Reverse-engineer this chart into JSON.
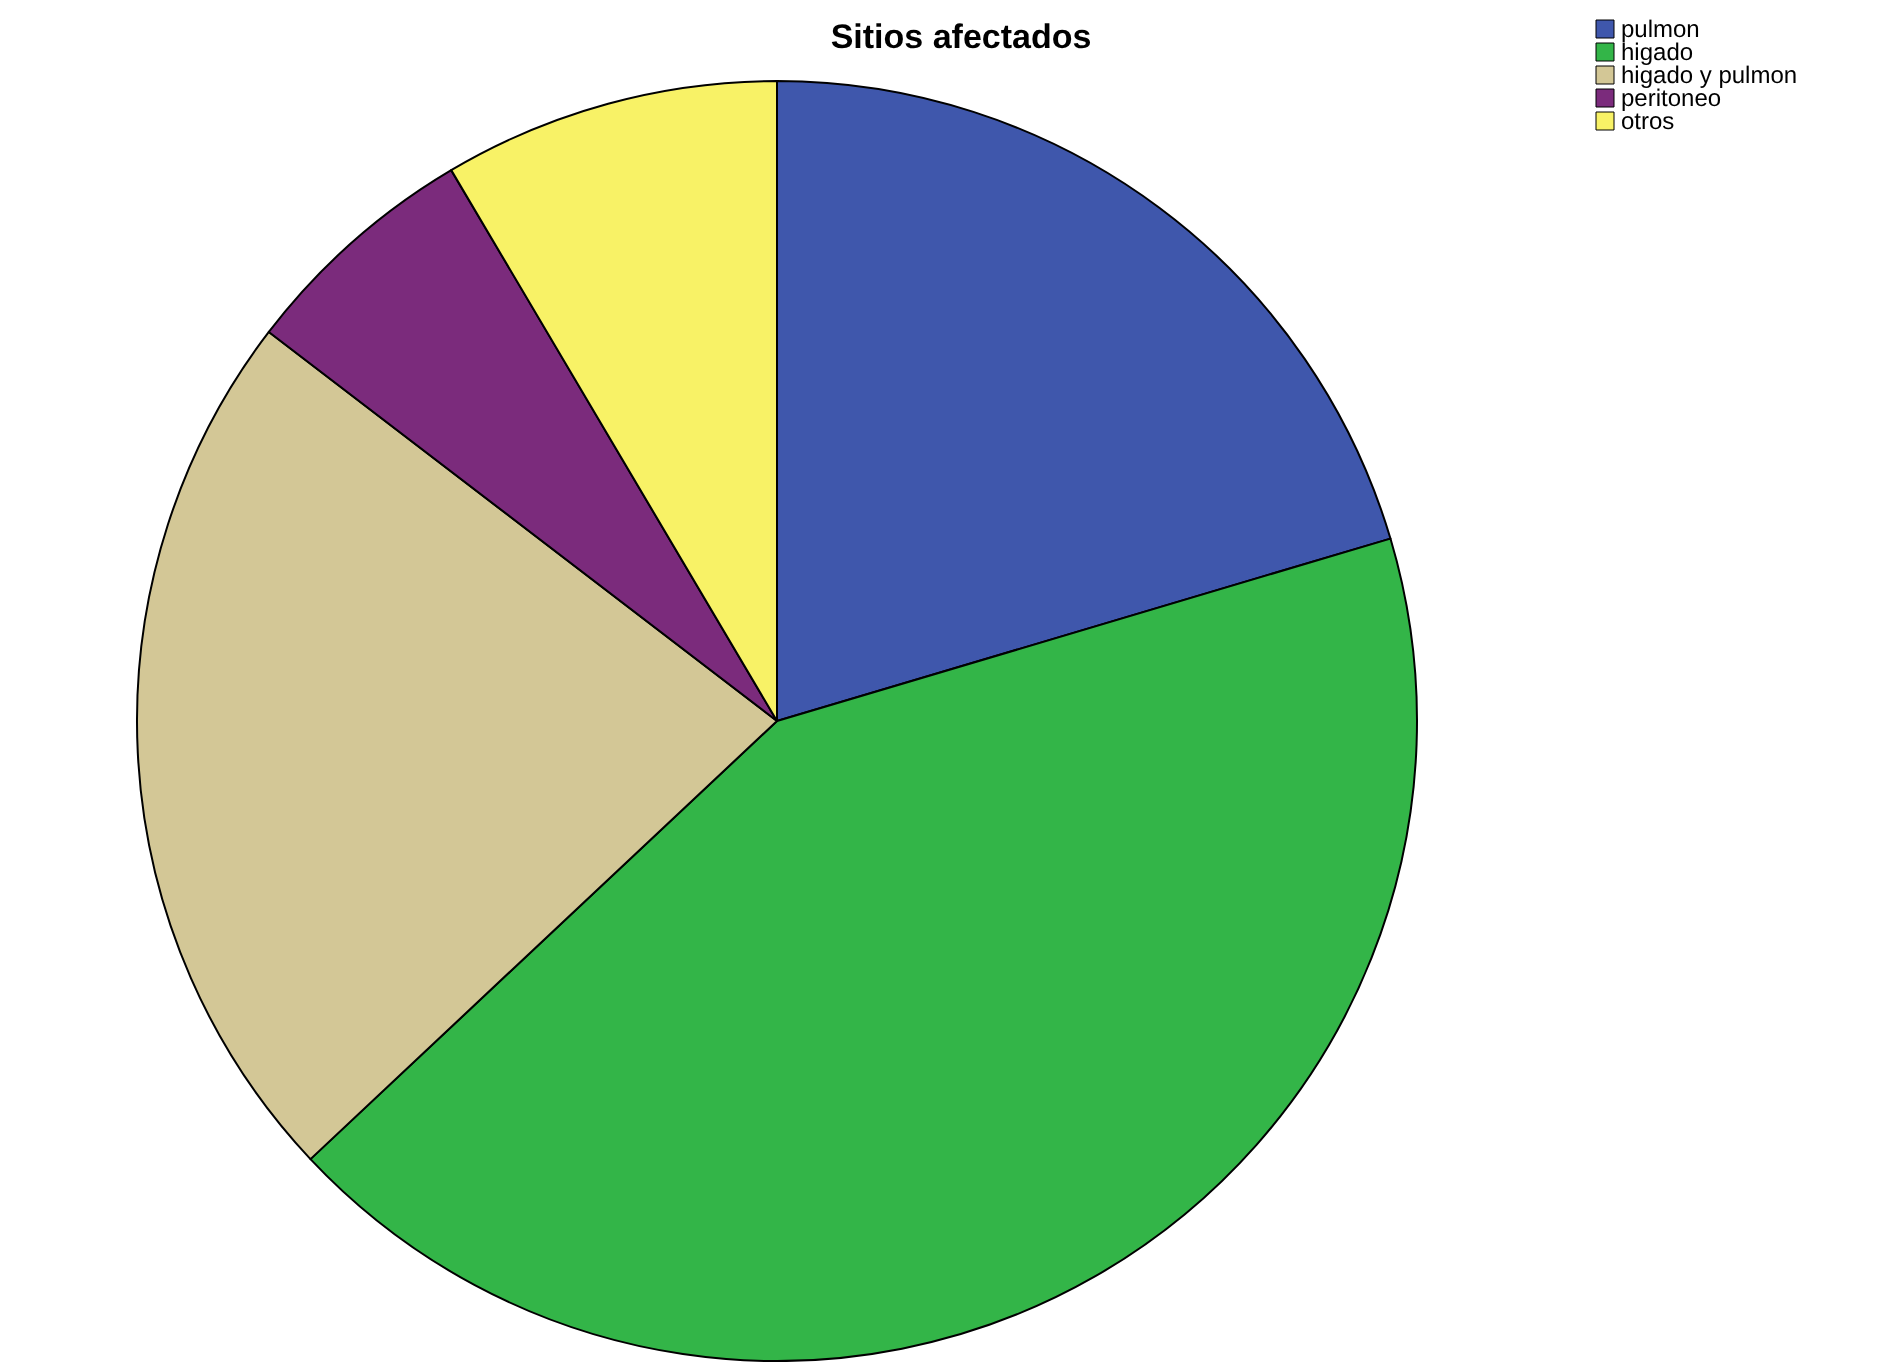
{
  "chart_data": {
    "type": "pie",
    "title": "Sitios afectados",
    "categories": [
      "pulmon",
      "higado",
      "higado y pulmon",
      "peritoneo",
      "otros"
    ],
    "values": [
      20.4,
      42.6,
      22.4,
      6.1,
      8.5
    ],
    "colors": [
      "#3f57ac",
      "#33b548",
      "#d3c796",
      "#7b2b7c",
      "#f8f266"
    ],
    "legend": "top right"
  }
}
